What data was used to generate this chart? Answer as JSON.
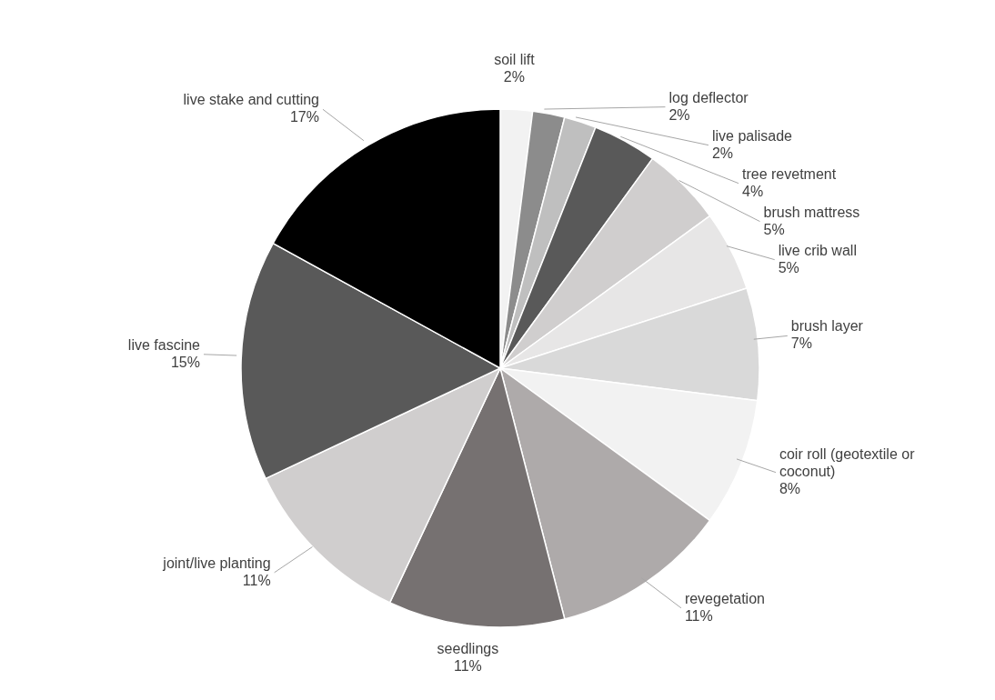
{
  "chart_data": {
    "type": "pie",
    "categories": [
      "soil lift",
      "log deflector",
      "live palisade",
      "tree revetment",
      "brush mattress",
      "live crib wall",
      "brush layer",
      "coir roll (geotextile or coconut)",
      "revegetation",
      "seedlings",
      "joint/live planting",
      "live fascine",
      "live stake and cutting"
    ],
    "values": [
      2,
      2,
      2,
      4,
      5,
      5,
      7,
      8,
      11,
      11,
      11,
      15,
      17
    ],
    "value_labels": [
      "2%",
      "2%",
      "2%",
      "4%",
      "5%",
      "5%",
      "7%",
      "8%",
      "11%",
      "11%",
      "11%",
      "15%",
      "17%"
    ],
    "colors": [
      "#f2f2f2",
      "#8c8c8c",
      "#bfbfbf",
      "#595959",
      "#d0cece",
      "#e7e6e6",
      "#d9d9d9",
      "#f2f2f2",
      "#aeaaaa",
      "#767171",
      "#d0cece",
      "#595959",
      "#000000"
    ],
    "legend": false
  }
}
